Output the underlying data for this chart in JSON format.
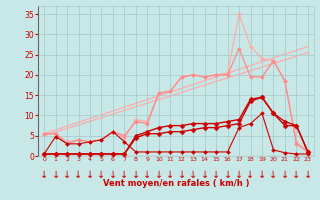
{
  "background_color": "#c8e8e8",
  "grid_color": "#aacccc",
  "text_color": "#cc0000",
  "xlabel": "Vent moyen/en rafales ( km/h )",
  "x_ticks": [
    0,
    1,
    2,
    3,
    4,
    5,
    6,
    7,
    8,
    9,
    10,
    11,
    12,
    13,
    14,
    15,
    16,
    17,
    18,
    19,
    20,
    21,
    22,
    23
  ],
  "ylim": [
    0,
    37
  ],
  "xlim": [
    -0.5,
    23.5
  ],
  "yticks": [
    0,
    5,
    10,
    15,
    20,
    25,
    30,
    35
  ],
  "series": [
    {
      "x": [
        0,
        23
      ],
      "y": [
        5.5,
        27.0
      ],
      "color": "#ffaaaa",
      "linewidth": 0.9,
      "marker": null,
      "markersize": 0,
      "alpha": 1.0,
      "zorder": 1
    },
    {
      "x": [
        0,
        23
      ],
      "y": [
        5.0,
        25.5
      ],
      "color": "#ffaaaa",
      "linewidth": 0.9,
      "marker": null,
      "markersize": 0,
      "alpha": 1.0,
      "zorder": 1
    },
    {
      "x": [
        0,
        1,
        2,
        3,
        4,
        5,
        6,
        7,
        8,
        9,
        10,
        11,
        12,
        13,
        14,
        15,
        16,
        17,
        18,
        19,
        20,
        21,
        22,
        23
      ],
      "y": [
        5.5,
        5.5,
        3.5,
        4.0,
        3.5,
        4.0,
        6.0,
        4.5,
        9.0,
        8.5,
        15.5,
        16.0,
        19.5,
        20.0,
        19.5,
        20.0,
        20.5,
        35.0,
        27.0,
        24.0,
        23.5,
        18.5,
        3.5,
        1.0
      ],
      "color": "#ffaaaa",
      "linewidth": 0.9,
      "marker": "D",
      "markersize": 2.0,
      "alpha": 1.0,
      "zorder": 2
    },
    {
      "x": [
        0,
        1,
        2,
        3,
        4,
        5,
        6,
        7,
        8,
        9,
        10,
        11,
        12,
        13,
        14,
        15,
        16,
        17,
        18,
        19,
        20,
        21,
        22,
        23
      ],
      "y": [
        5.5,
        5.5,
        3.0,
        4.0,
        3.5,
        4.0,
        6.0,
        5.0,
        8.5,
        8.0,
        15.5,
        16.0,
        19.5,
        20.0,
        19.5,
        20.0,
        20.0,
        26.5,
        19.5,
        19.5,
        23.5,
        18.5,
        3.0,
        1.0
      ],
      "color": "#ff8888",
      "linewidth": 0.9,
      "marker": "D",
      "markersize": 2.0,
      "alpha": 1.0,
      "zorder": 2
    },
    {
      "x": [
        0,
        1,
        2,
        3,
        4,
        5,
        6,
        7,
        8,
        9,
        10,
        11,
        12,
        13,
        14,
        15,
        16,
        17,
        18,
        19,
        20,
        21,
        22,
        23
      ],
      "y": [
        0.5,
        0.5,
        0.5,
        0.5,
        0.5,
        0.5,
        0.5,
        0.5,
        4.5,
        5.5,
        5.5,
        6.0,
        6.0,
        6.5,
        7.0,
        7.0,
        7.5,
        8.0,
        13.5,
        14.5,
        10.5,
        7.5,
        7.5,
        1.0
      ],
      "color": "#cc0000",
      "linewidth": 1.0,
      "marker": "D",
      "markersize": 2.5,
      "alpha": 1.0,
      "zorder": 3
    },
    {
      "x": [
        0,
        1,
        2,
        3,
        4,
        5,
        6,
        7,
        8,
        9,
        10,
        11,
        12,
        13,
        14,
        15,
        16,
        17,
        18,
        19,
        20,
        21,
        22,
        23
      ],
      "y": [
        0.5,
        0.5,
        0.5,
        0.5,
        0.5,
        0.5,
        0.5,
        0.5,
        5.0,
        6.0,
        7.0,
        7.5,
        7.5,
        8.0,
        8.0,
        8.0,
        8.5,
        9.0,
        14.0,
        14.5,
        10.5,
        8.5,
        7.5,
        1.0
      ],
      "color": "#cc0000",
      "linewidth": 1.0,
      "marker": "D",
      "markersize": 2.5,
      "alpha": 1.0,
      "zorder": 3
    },
    {
      "x": [
        0,
        1,
        2,
        3,
        4,
        5,
        6,
        7,
        8,
        9,
        10,
        11,
        12,
        13,
        14,
        15,
        16,
        17,
        18,
        19,
        20,
        21,
        22,
        23
      ],
      "y": [
        0.5,
        4.8,
        3.0,
        3.0,
        3.5,
        4.0,
        6.0,
        3.5,
        1.0,
        1.0,
        1.0,
        1.0,
        1.0,
        1.0,
        1.0,
        1.0,
        1.0,
        7.0,
        8.0,
        10.5,
        1.5,
        0.8,
        0.5,
        0.5
      ],
      "color": "#cc0000",
      "linewidth": 0.8,
      "marker": "D",
      "markersize": 2.0,
      "alpha": 1.0,
      "zorder": 3
    }
  ],
  "arrow_color": "#cc0000",
  "arrow_fontsize": 7
}
